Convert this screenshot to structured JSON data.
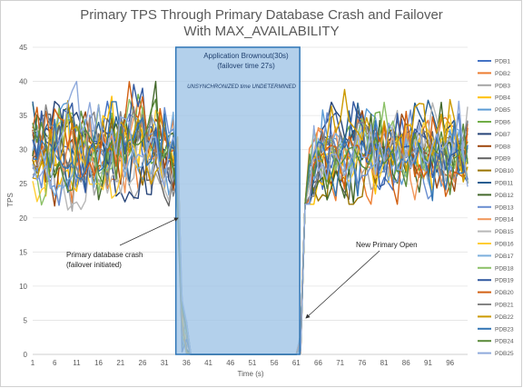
{
  "chart_data": {
    "type": "line",
    "title_lines": [
      "Primary TPS Through Primary Database Crash and Failover",
      "With MAX_AVAILABILITY"
    ],
    "xlabel": "Time (s)",
    "ylabel": "TPS",
    "xlim": [
      1,
      100
    ],
    "ylim": [
      0,
      45
    ],
    "y_ticks": [
      0,
      5,
      10,
      15,
      20,
      25,
      30,
      35,
      40,
      45
    ],
    "x_ticks": [
      1,
      6,
      11,
      16,
      21,
      26,
      31,
      36,
      41,
      46,
      51,
      56,
      61,
      66,
      71,
      76,
      81,
      86,
      91,
      96
    ],
    "grid": "horizontal",
    "legend_position": "right",
    "outage_window": [
      34,
      62
    ],
    "series_names": [
      "PDB1",
      "PDB2",
      "PDB3",
      "PDB4",
      "PDB5",
      "PDB6",
      "PDB7",
      "PDB8",
      "PDB9",
      "PDB10",
      "PDB11",
      "PDB12",
      "PDB13",
      "PDB14",
      "PDB15",
      "PDB16",
      "PDB17",
      "PDB18",
      "PDB19",
      "PDB20",
      "PDB21",
      "PDB22",
      "PDB23",
      "PDB24",
      "PDB25"
    ],
    "series_colors": [
      "#4472C4",
      "#ED7D31",
      "#A5A5A5",
      "#FFC000",
      "#5B9BD5",
      "#70AD47",
      "#264478",
      "#9E480E",
      "#636363",
      "#997300",
      "#255E91",
      "#43682B",
      "#698ED0",
      "#F1975A",
      "#B7B7B7",
      "#FFCD33",
      "#7CAFDD",
      "#8CC168",
      "#335AA1",
      "#D26012",
      "#848484",
      "#CC9A00",
      "#3275B4",
      "#5A8A39",
      "#8FAADC"
    ],
    "series_summary": "Each series fluctuates between about 22 and 40 TPS for t=1–34, drops to 0 during t=35–61, and recovers to the same range from t=63 onward.",
    "annotations": {
      "brownout_title": "Application Brownout(30s)",
      "brownout_sub": "(failover time 27s)",
      "brownout_note": "UNSYNCHRONIZED time UNDETERMINED",
      "crash_line1": "Primary database crash",
      "crash_line2": "(failover initiated)",
      "open_label": "New Primary Open"
    }
  }
}
